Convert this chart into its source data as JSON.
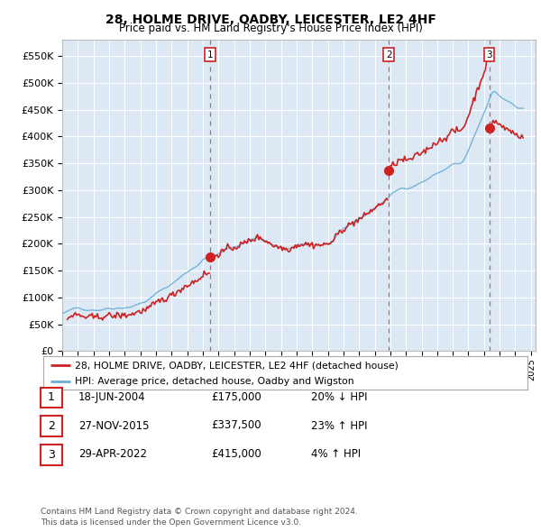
{
  "title": "28, HOLME DRIVE, OADBY, LEICESTER, LE2 4HF",
  "subtitle": "Price paid vs. HM Land Registry's House Price Index (HPI)",
  "ylabel_ticks": [
    "£0",
    "£50K",
    "£100K",
    "£150K",
    "£200K",
    "£250K",
    "£300K",
    "£350K",
    "£400K",
    "£450K",
    "£500K",
    "£550K"
  ],
  "ytick_values": [
    0,
    50000,
    100000,
    150000,
    200000,
    250000,
    300000,
    350000,
    400000,
    450000,
    500000,
    550000
  ],
  "ylim": [
    0,
    580000
  ],
  "xlim_start": 1995.33,
  "xlim_end": 2025.3,
  "plot_bg_color": "#dce9f5",
  "grid_color": "#ffffff",
  "sale_dates": [
    2004.46,
    2015.9,
    2022.33
  ],
  "sale_prices": [
    175000,
    337500,
    415000
  ],
  "hpi_color": "#6baed6",
  "price_color": "#cc2222",
  "dashed_line_color": "#cc2222",
  "legend_label_price": "28, HOLME DRIVE, OADBY, LEICESTER, LE2 4HF (detached house)",
  "legend_label_hpi": "HPI: Average price, detached house, Oadby and Wigston",
  "table_rows": [
    [
      "1",
      "18-JUN-2004",
      "£175,000",
      "20% ↓ HPI"
    ],
    [
      "2",
      "27-NOV-2015",
      "£337,500",
      "23% ↑ HPI"
    ],
    [
      "3",
      "29-APR-2022",
      "£415,000",
      "4% ↑ HPI"
    ]
  ],
  "footnote": "Contains HM Land Registry data © Crown copyright and database right 2024.\nThis data is licensed under the Open Government Licence v3.0.",
  "xtick_years": [
    1995,
    1996,
    1997,
    1998,
    1999,
    2000,
    2001,
    2002,
    2003,
    2004,
    2005,
    2006,
    2007,
    2008,
    2009,
    2010,
    2011,
    2012,
    2013,
    2014,
    2015,
    2016,
    2017,
    2018,
    2019,
    2020,
    2021,
    2022,
    2023,
    2024,
    2025
  ]
}
